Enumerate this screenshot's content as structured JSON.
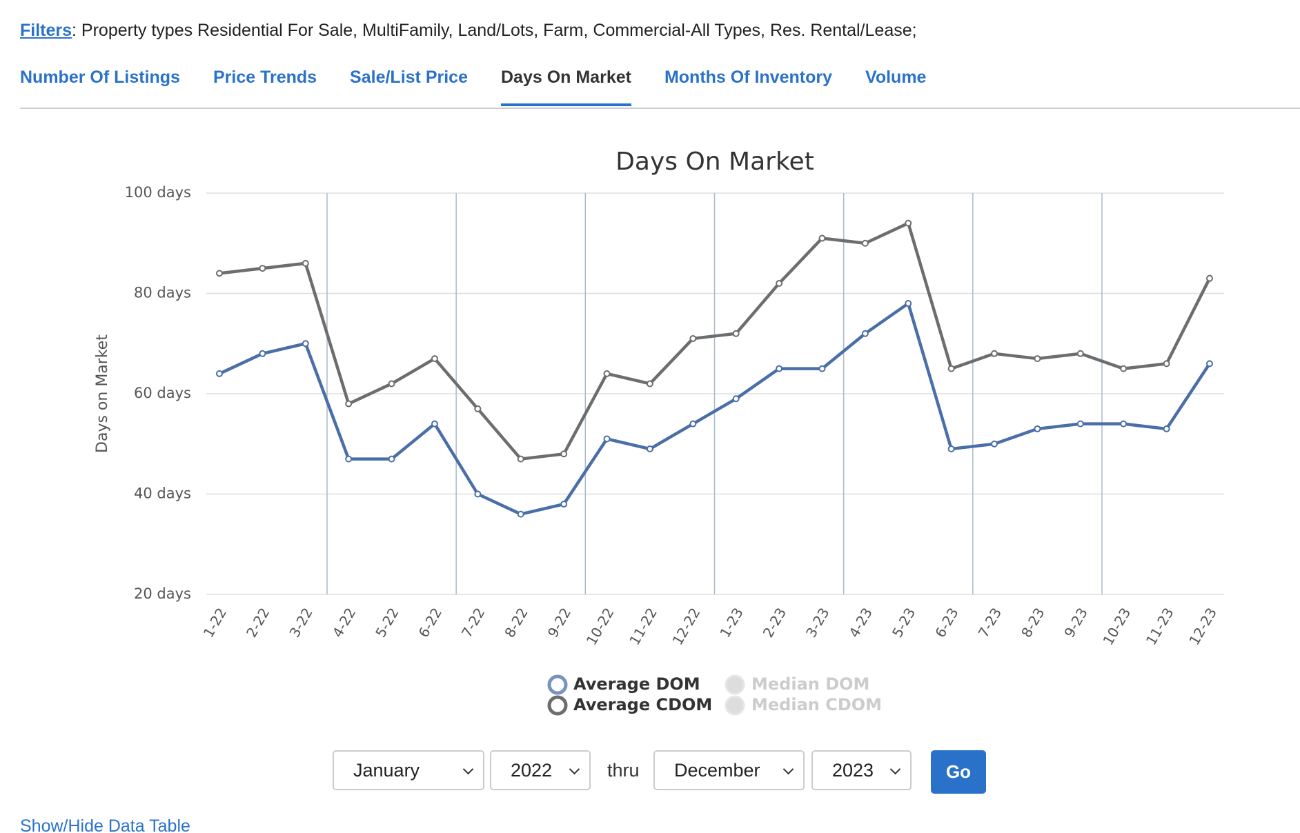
{
  "filters": {
    "link": "Filters",
    "text": ": Property types Residential For Sale, MultiFamily, Land/Lots, Farm, Commercial-All Types, Res. Rental/Lease;"
  },
  "tabs": [
    {
      "label": "Number Of Listings",
      "active": false
    },
    {
      "label": "Price Trends",
      "active": false
    },
    {
      "label": "Sale/List Price",
      "active": false
    },
    {
      "label": "Days On Market",
      "active": true
    },
    {
      "label": "Months Of Inventory",
      "active": false
    },
    {
      "label": "Volume",
      "active": false
    }
  ],
  "chart_data": {
    "type": "line",
    "title": "Days On Market",
    "y_label": "Days on Market",
    "categories": [
      "1-22",
      "2-22",
      "3-22",
      "4-22",
      "5-22",
      "6-22",
      "7-22",
      "8-22",
      "9-22",
      "10-22",
      "11-22",
      "12-22",
      "1-23",
      "2-23",
      "3-23",
      "4-23",
      "5-23",
      "6-23",
      "7-23",
      "8-23",
      "9-23",
      "10-23",
      "11-23",
      "12-23"
    ],
    "series": [
      {
        "name": "Average DOM",
        "color": "#4a6ea8",
        "values": [
          64,
          68,
          70,
          47,
          47,
          54,
          40,
          36,
          38,
          51,
          49,
          54,
          59,
          65,
          65,
          72,
          78,
          49,
          50,
          53,
          54,
          54,
          53,
          66
        ]
      },
      {
        "name": "Average CDOM",
        "color": "#6d6d6d",
        "values": [
          84,
          85,
          86,
          58,
          62,
          67,
          57,
          47,
          48,
          64,
          62,
          71,
          72,
          82,
          91,
          90,
          94,
          65,
          68,
          67,
          68,
          65,
          66,
          83
        ]
      }
    ],
    "hidden_series": [
      {
        "name": "Median DOM"
      },
      {
        "name": "Median CDOM"
      }
    ],
    "ylim": [
      20,
      100
    ],
    "yticks": [
      {
        "value": 20,
        "label": "20 days"
      },
      {
        "value": 40,
        "label": "40 days"
      },
      {
        "value": 60,
        "label": "60 days"
      },
      {
        "value": 80,
        "label": "80 days"
      },
      {
        "value": 100,
        "label": "100 days"
      }
    ],
    "grid": true,
    "x_grid_every": 3
  },
  "controls": {
    "from_month": "January",
    "from_year": "2022",
    "thru": "thru",
    "to_month": "December",
    "to_year": "2023",
    "button": "Go"
  },
  "footer_link": "Show/Hide Data Table"
}
